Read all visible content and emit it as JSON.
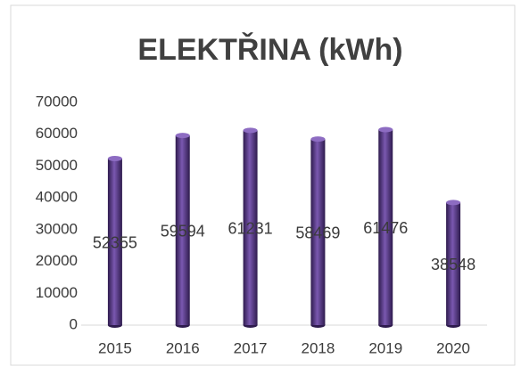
{
  "chart_data": {
    "type": "bar",
    "title": "ELEKTŘINA (kWh)",
    "categories": [
      "2015",
      "2016",
      "2017",
      "2018",
      "2019",
      "2020"
    ],
    "values": [
      52355,
      59594,
      61231,
      58469,
      61476,
      38548
    ],
    "color": "#5a3a8a",
    "ylim": [
      0,
      70000
    ],
    "yticks": [
      0,
      10000,
      20000,
      30000,
      40000,
      50000,
      60000,
      70000
    ],
    "grid": false,
    "data_labels": true
  }
}
